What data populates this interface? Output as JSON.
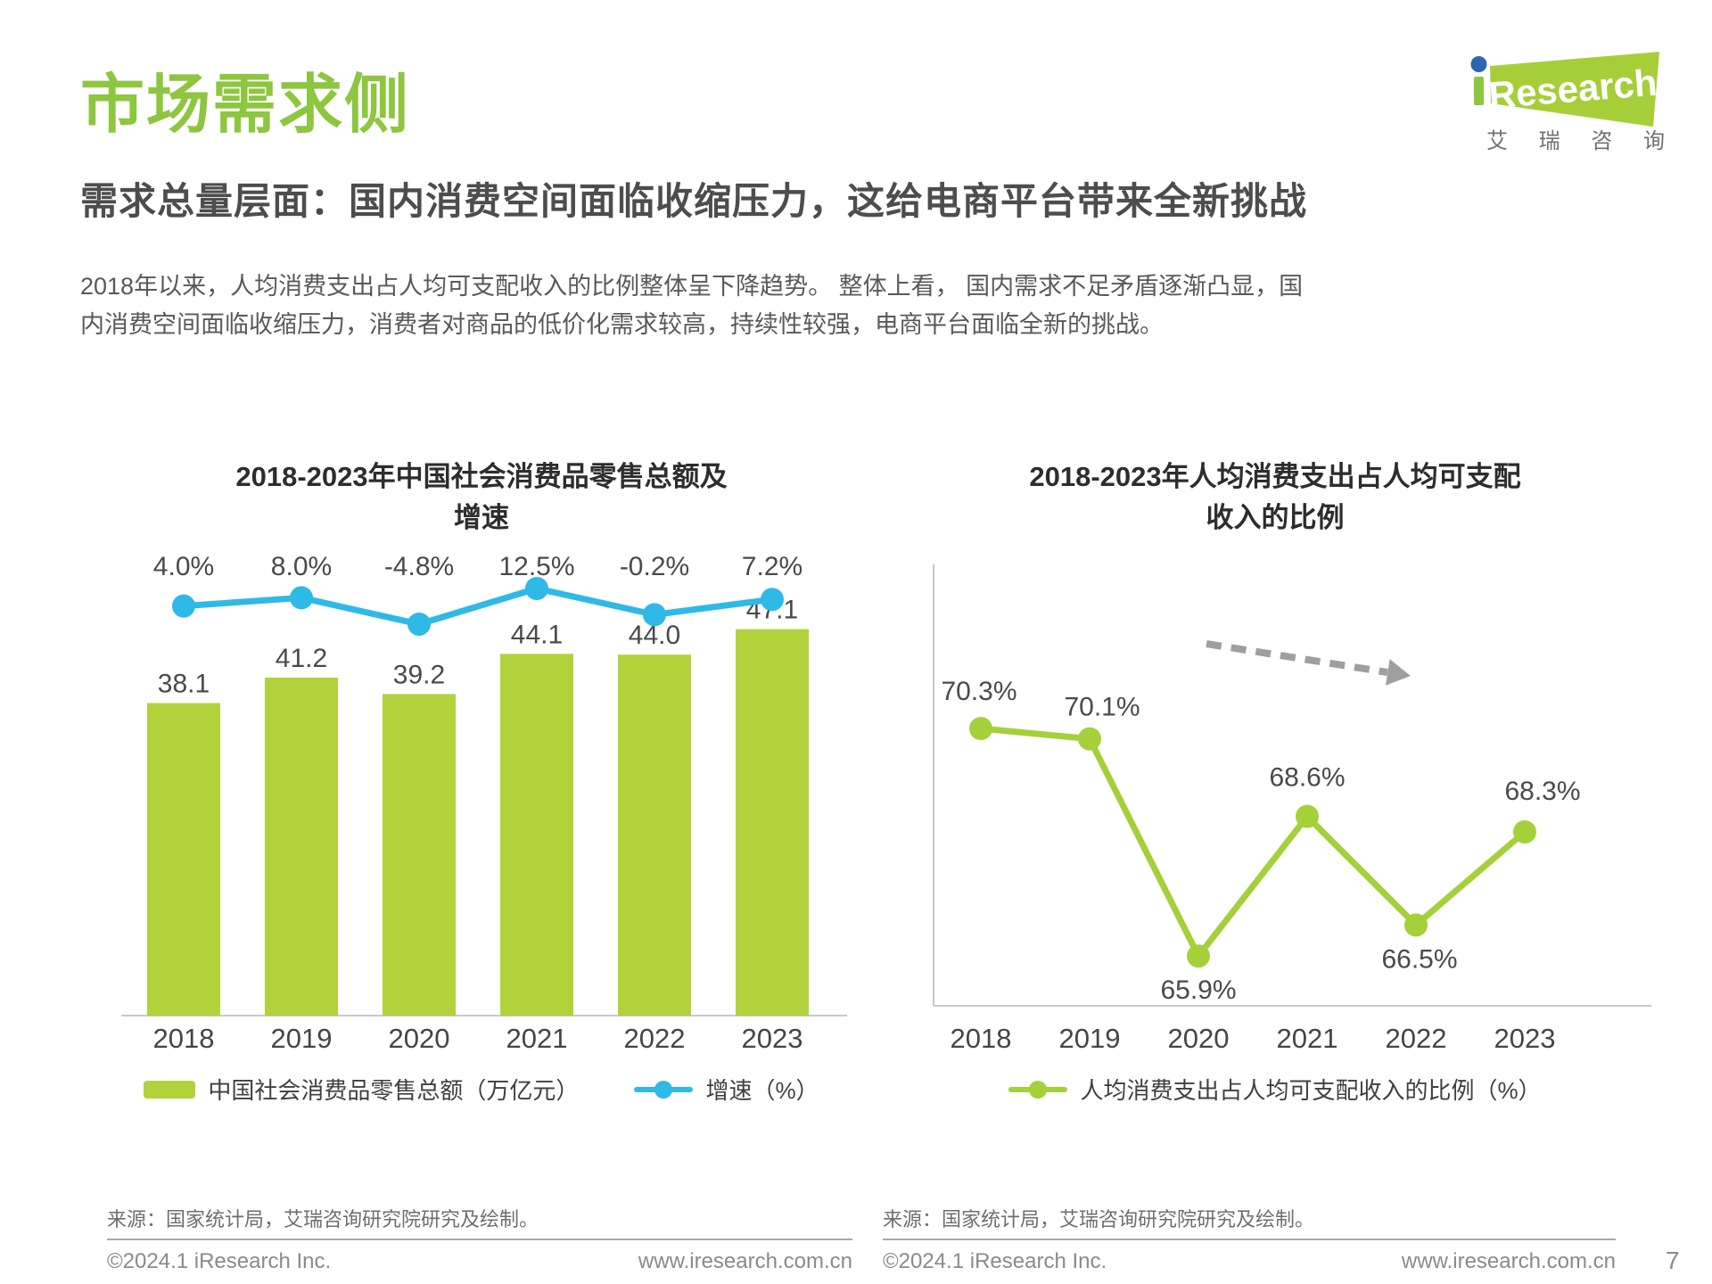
{
  "page": {
    "number": "7"
  },
  "logo": {
    "brand_i": "i",
    "brand": "Research",
    "subtext": "艾 瑞 咨 询"
  },
  "header": {
    "title": "市场需求侧",
    "subtitle": "需求总量层面：国内消费空间面临收缩压力，这给电商平台带来全新挑战",
    "paragraph": "2018年以来，人均消费支出占人均可支配收入的比例整体呈下降趋势。 整体上看， 国内需求不足矛盾逐渐凸显，国内消费空间面临收缩压力，消费者对商品的低价化需求较高，持续性较强，电商平台面临全新的挑战。"
  },
  "colors": {
    "brand_green": "#8dc63f",
    "bar_green": "#b1d23b",
    "line_green": "#a4d03a",
    "line_blue": "#2eb9e7",
    "logo_dot_blue": "#2b66ae",
    "arrow_gray": "#9f9f9f",
    "axis_gray": "#c9c9c9"
  },
  "chart_data": [
    {
      "type": "bar",
      "title_lines": [
        "2018-2023年中国社会消费品零售总额及",
        "增速"
      ],
      "categories": [
        "2018",
        "2019",
        "2020",
        "2021",
        "2022",
        "2023"
      ],
      "series": [
        {
          "name": "中国社会消费品零售总额（万亿元）",
          "type": "bar",
          "color": "#b1d23b",
          "values": [
            38.1,
            41.2,
            39.2,
            44.1,
            44.0,
            47.1
          ],
          "labels": [
            "38.1",
            "41.2",
            "39.2",
            "44.1",
            "44.0",
            "47.1"
          ]
        },
        {
          "name": "增速（%）",
          "type": "line",
          "color": "#2eb9e7",
          "values": [
            4.0,
            8.0,
            -4.8,
            12.5,
            -0.2,
            7.2
          ],
          "labels": [
            "4.0%",
            "8.0%",
            "-4.8%",
            "12.5%",
            "-0.2%",
            "7.2%"
          ]
        }
      ],
      "ylim": [
        0,
        50
      ],
      "grid": false,
      "legend_position": "bottom",
      "source": "来源：国家统计局，艾瑞咨询研究院研究及绘制。"
    },
    {
      "type": "line",
      "title_lines": [
        "2018-2023年人均消费支出占人均可支配",
        "收入的比例"
      ],
      "categories": [
        "2018",
        "2019",
        "2020",
        "2021",
        "2022",
        "2023"
      ],
      "series": [
        {
          "name": "人均消费支出占人均可支配收入的比例（%）",
          "type": "line",
          "color": "#a4d03a",
          "values": [
            70.3,
            70.1,
            65.9,
            68.6,
            66.5,
            68.3
          ],
          "labels": [
            "70.3%",
            "70.1%",
            "65.9%",
            "68.6%",
            "66.5%",
            "68.3%"
          ]
        }
      ],
      "annotation": "dashed-downward-trend-arrow",
      "grid": false,
      "legend_position": "bottom",
      "source": "来源：国家统计局，艾瑞咨询研究院研究及绘制。"
    }
  ],
  "footer": {
    "copyright": "©2024.1 iResearch Inc.",
    "website": "www.iresearch.com.cn"
  }
}
